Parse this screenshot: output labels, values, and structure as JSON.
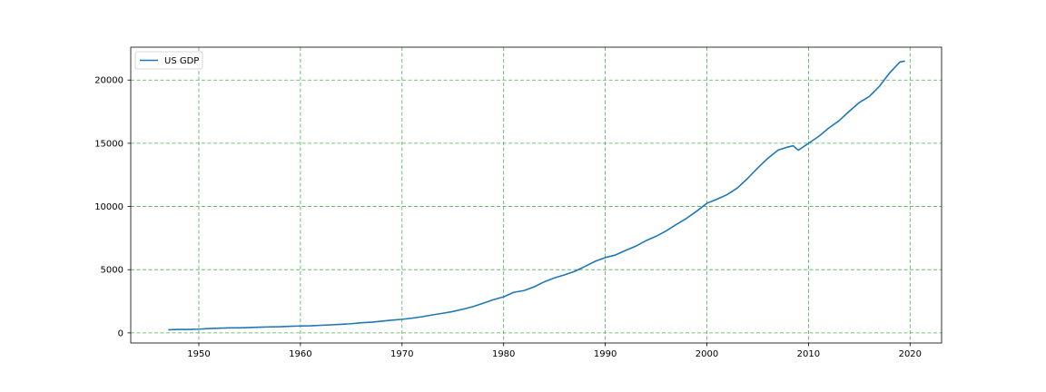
{
  "chart_data": {
    "type": "line",
    "title": "",
    "xlabel": "",
    "ylabel": "",
    "xlim": [
      1943.3,
      2023.1
    ],
    "ylim": [
      -800,
      22600
    ],
    "xticks": [
      1950,
      1960,
      1970,
      1980,
      1990,
      2000,
      2010,
      2020
    ],
    "yticks": [
      0,
      5000,
      10000,
      15000,
      20000
    ],
    "grid": true,
    "grid_color": "#4caf50",
    "line_color": "#1f77b4",
    "legend_position": "upper-left",
    "series": [
      {
        "name": "US GDP",
        "x": [
          1947,
          1948,
          1949,
          1950,
          1951,
          1952,
          1953,
          1954,
          1955,
          1956,
          1957,
          1958,
          1959,
          1960,
          1961,
          1962,
          1963,
          1964,
          1965,
          1966,
          1967,
          1968,
          1969,
          1970,
          1971,
          1972,
          1973,
          1974,
          1975,
          1976,
          1977,
          1978,
          1979,
          1980,
          1981,
          1982,
          1983,
          1984,
          1985,
          1986,
          1987,
          1988,
          1989,
          1990,
          1991,
          1992,
          1993,
          1994,
          1995,
          1996,
          1997,
          1998,
          1999,
          2000,
          2001,
          2002,
          2003,
          2004,
          2005,
          2006,
          2007,
          2008,
          2008.5,
          2009,
          2010,
          2011,
          2012,
          2013,
          2014,
          2015,
          2016,
          2017,
          2018,
          2019,
          2019.5
        ],
        "y": [
          245,
          270,
          275,
          295,
          345,
          370,
          395,
          395,
          425,
          455,
          475,
          485,
          520,
          545,
          560,
          600,
          635,
          675,
          725,
          800,
          845,
          925,
          1010,
          1075,
          1165,
          1280,
          1425,
          1550,
          1690,
          1875,
          2080,
          2350,
          2630,
          2850,
          3210,
          3345,
          3640,
          4040,
          4350,
          4590,
          4870,
          5250,
          5660,
          5960,
          6160,
          6520,
          6860,
          7290,
          7640,
          8070,
          8580,
          9060,
          9630,
          10250,
          10580,
          10940,
          11460,
          12210,
          13040,
          13810,
          14450,
          14710,
          14800,
          14450,
          14990,
          15540,
          16200,
          16780,
          17520,
          18220,
          18710,
          19520,
          20580,
          21430,
          21500
        ]
      }
    ]
  }
}
